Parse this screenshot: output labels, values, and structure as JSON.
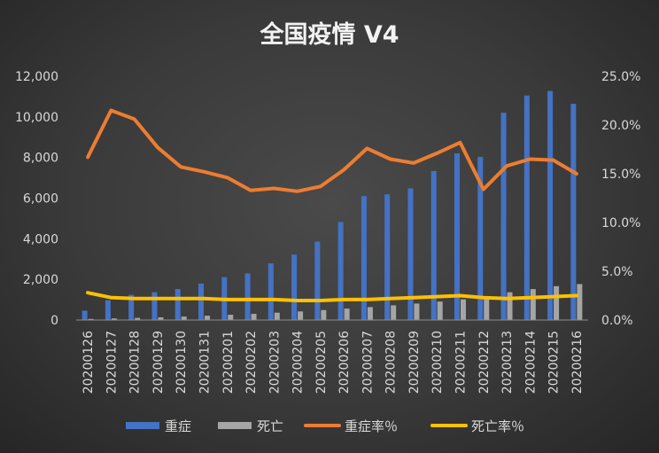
{
  "chart_data": {
    "type": "bar",
    "title": "全国疫情 V4",
    "categories": [
      "20200126",
      "20200127",
      "20200128",
      "20200129",
      "20200130",
      "20200131",
      "20200201",
      "20200202",
      "20200203",
      "20200204",
      "20200205",
      "20200206",
      "20200207",
      "20200208",
      "20200209",
      "20200210",
      "20200211",
      "20200212",
      "20200213",
      "20200214",
      "20200215",
      "20200216"
    ],
    "y_left": {
      "ticks": [
        "0",
        "2,000",
        "4,000",
        "6,000",
        "8,000",
        "10,000",
        "12,000"
      ],
      "ylim": [
        0,
        12000
      ]
    },
    "y_right": {
      "ticks": [
        "0.0%",
        "5.0%",
        "10.0%",
        "15.0%",
        "20.0%",
        "25.0%"
      ],
      "ylim": [
        0,
        25
      ]
    },
    "grid": false,
    "legend_position": "bottom",
    "series": [
      {
        "name": "重症",
        "type": "bar",
        "axis": "left",
        "color": "#4472c4",
        "values": [
          461,
          976,
          1239,
          1370,
          1527,
          1795,
          2110,
          2296,
          2788,
          3219,
          3859,
          4821,
          6101,
          6188,
          6484,
          7333,
          8204,
          8030,
          10204,
          11053,
          11272,
          10644
        ]
      },
      {
        "name": "死亡",
        "type": "bar",
        "axis": "left",
        "color": "#a5a5a5",
        "values": [
          56,
          80,
          106,
          132,
          170,
          213,
          259,
          304,
          361,
          425,
          490,
          563,
          636,
          722,
          811,
          908,
          1016,
          1113,
          1367,
          1523,
          1665,
          1770
        ]
      },
      {
        "name": "重症率％",
        "type": "line",
        "axis": "right",
        "color": "#ed7d31",
        "values": [
          16.7,
          21.5,
          20.6,
          17.7,
          15.7,
          15.2,
          14.6,
          13.3,
          13.5,
          13.2,
          13.7,
          15.4,
          17.6,
          16.5,
          16.1,
          17.1,
          18.2,
          13.4,
          15.8,
          16.5,
          16.4,
          15.0
        ]
      },
      {
        "name": "死亡率％",
        "type": "line",
        "axis": "right",
        "color": "#ffc000",
        "values": [
          2.8,
          2.3,
          2.2,
          2.2,
          2.2,
          2.2,
          2.1,
          2.1,
          2.1,
          2.0,
          2.0,
          2.1,
          2.1,
          2.2,
          2.3,
          2.4,
          2.5,
          2.3,
          2.2,
          2.3,
          2.4,
          2.5
        ]
      }
    ]
  }
}
